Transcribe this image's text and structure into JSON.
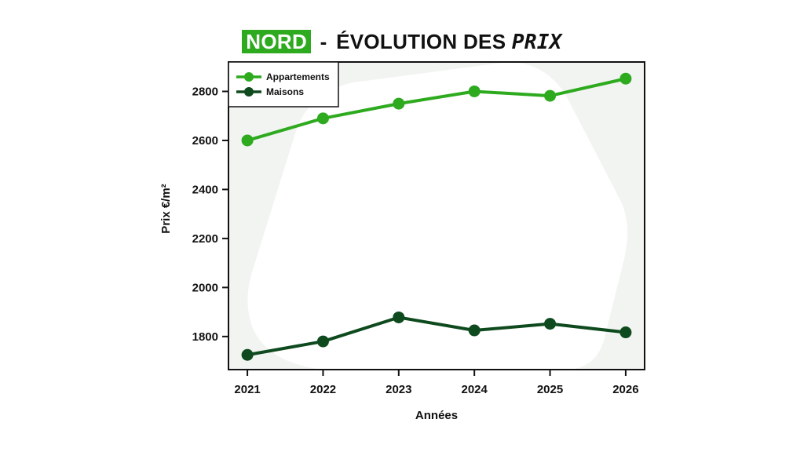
{
  "title": {
    "badge": "NORD",
    "separator": "-",
    "main": "ÉVOLUTION DES",
    "hand": "PRIX"
  },
  "colors": {
    "appartements": "#2eaa1f",
    "maisons": "#0e4a1e",
    "badge_bg": "#2eaa1f",
    "background_shape": "#f2f4f1"
  },
  "chart_data": {
    "type": "line",
    "xlabel": "Années",
    "ylabel": "Prix €/m²",
    "x": [
      2021,
      2022,
      2023,
      2024,
      2025,
      2026
    ],
    "xticks": [
      "2021",
      "2022",
      "2023",
      "2024",
      "2025",
      "2026"
    ],
    "yticks": [
      "1800",
      "2000",
      "2200",
      "2400",
      "2600",
      "2800"
    ],
    "ytick_values": [
      1800,
      2000,
      2200,
      2400,
      2600,
      2800
    ],
    "ylim": [
      1665,
      2920
    ],
    "xlim": [
      2020.75,
      2026.25
    ],
    "grid": false,
    "legend": "top-left",
    "series": [
      {
        "name": "Appartements",
        "color": "#2eaa1f",
        "values": [
          2600,
          2690,
          2750,
          2800,
          2782,
          2852
        ]
      },
      {
        "name": "Maisons",
        "color": "#0e4a1e",
        "values": [
          1725,
          1780,
          1878,
          1825,
          1852,
          1817
        ]
      }
    ]
  }
}
